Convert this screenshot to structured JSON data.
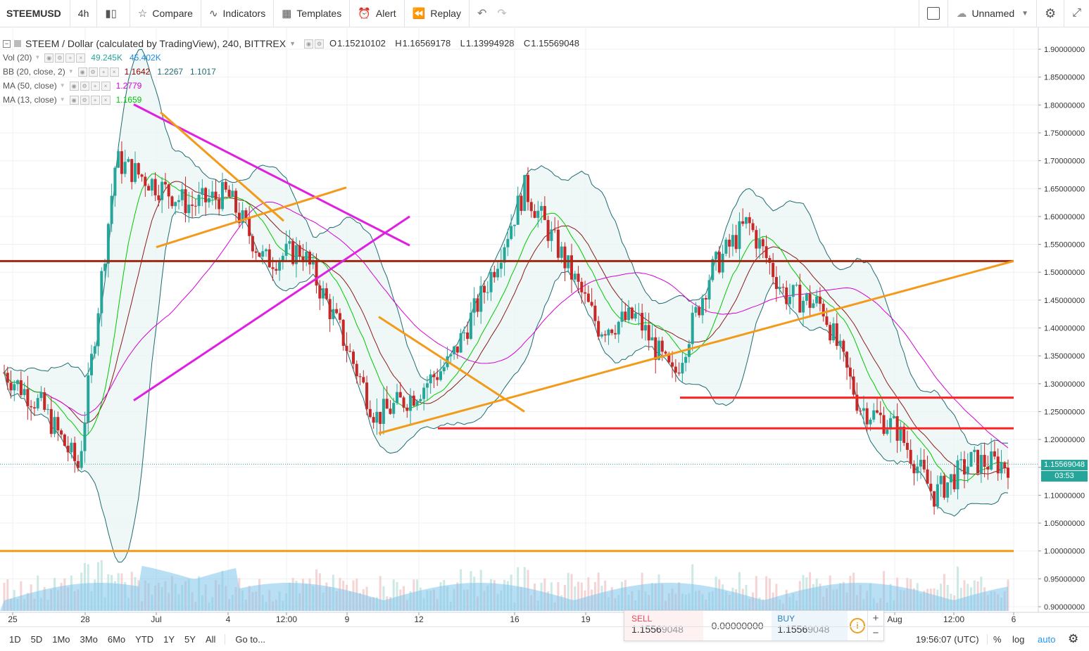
{
  "toolbar": {
    "symbol": "STEEMUSD",
    "interval": "4h",
    "compare": "Compare",
    "indicators": "Indicators",
    "templates": "Templates",
    "alert": "Alert",
    "replay": "Replay",
    "layout_name": "Unnamed"
  },
  "legend": {
    "title": "STEEM / Dollar (calculated by TradingView), 240, BITTREX",
    "open": "1.15210102",
    "high": "1.16569178",
    "low": "1.13994928",
    "close": "1.15569048",
    "open_label": "O",
    "high_label": "H",
    "low_label": "L",
    "close_label": "C",
    "indicators": [
      {
        "name": "Vol (20)",
        "values": [
          "49.245K",
          "45.402K"
        ],
        "colors": [
          "#26a69a",
          "#1e88e5"
        ]
      },
      {
        "name": "BB (20, close, 2)",
        "values": [
          "1.1642",
          "1.2267",
          "1.1017"
        ],
        "colors": [
          "#8b0000",
          "#1e6b72",
          "#1e6b72"
        ]
      },
      {
        "name": "MA (50, close)",
        "values": [
          "1.2779"
        ],
        "colors": [
          "#d500d5"
        ]
      },
      {
        "name": "MA (13, close)",
        "values": [
          "1.1659"
        ],
        "colors": [
          "#00c800"
        ]
      }
    ]
  },
  "price_axis": {
    "labels": [
      "1.90000000",
      "1.85000000",
      "1.80000000",
      "1.75000000",
      "1.70000000",
      "1.65000000",
      "1.60000000",
      "1.55000000",
      "1.50000000",
      "1.45000000",
      "1.40000000",
      "1.35000000",
      "1.30000000",
      "1.25000000",
      "1.20000000",
      "1.15000000",
      "1.10000000",
      "1.05000000",
      "1.00000000",
      "0.95000000",
      "0.90000000"
    ],
    "last_price": "1.15569048",
    "countdown": "03:53"
  },
  "time_axis": {
    "labels": [
      "25",
      "28",
      "Jul",
      "4",
      "12:00",
      "9",
      "12",
      "16",
      "19",
      "Aug",
      "12:00",
      "6"
    ]
  },
  "chart_data": {
    "type": "candlestick",
    "symbol": "STEEMUSD",
    "interval": "240",
    "ylim": [
      0.9,
      1.9
    ],
    "log_scale": false,
    "grid": true,
    "bb_upper_peak_note": "approximate",
    "close_series_approx": [
      {
        "x": "25",
        "y": 1.32
      },
      {
        "x": "28",
        "y": 1.26
      },
      {
        "x": "29",
        "y": 1.15
      },
      {
        "x": "Jul",
        "y": 1.7
      },
      {
        "x": "2",
        "y": 1.66
      },
      {
        "x": "4",
        "y": 1.62
      },
      {
        "x": "5",
        "y": 1.64
      },
      {
        "x": "12:00",
        "y": 1.52
      },
      {
        "x": "9",
        "y": 1.54
      },
      {
        "x": "10",
        "y": 1.4
      },
      {
        "x": "12",
        "y": 1.24
      },
      {
        "x": "14",
        "y": 1.28
      },
      {
        "x": "16",
        "y": 1.34
      },
      {
        "x": "17",
        "y": 1.48
      },
      {
        "x": "18",
        "y": 1.65
      },
      {
        "x": "19",
        "y": 1.53
      },
      {
        "x": "21",
        "y": 1.4
      },
      {
        "x": "23",
        "y": 1.42
      },
      {
        "x": "25",
        "y": 1.31
      },
      {
        "x": "27",
        "y": 1.5
      },
      {
        "x": "28",
        "y": 1.59
      },
      {
        "x": "29",
        "y": 1.46
      },
      {
        "x": "31",
        "y": 1.44
      },
      {
        "x": "Aug",
        "y": 1.26
      },
      {
        "x": "3",
        "y": 1.22
      },
      {
        "x": "12:00",
        "y": 1.1
      },
      {
        "x": "5",
        "y": 1.16
      },
      {
        "x": "6",
        "y": 1.1557
      }
    ],
    "horizontal_lines": [
      {
        "price": 1.52,
        "color": "#9c2a12"
      },
      {
        "price": 1.275,
        "color": "#ff2222"
      },
      {
        "price": 1.22,
        "color": "#ff2222"
      },
      {
        "price": 1.0,
        "color": "#f39a1a"
      }
    ]
  },
  "trade_panel": {
    "sell_label": "SELL",
    "sell_price_main": "1.1556",
    "sell_price_tail": "9048",
    "spread": "0.00000000",
    "buy_label": "BUY",
    "buy_price_main": "1.1556",
    "buy_price_tail": "9048"
  },
  "bottombar": {
    "ranges": [
      "1D",
      "5D",
      "1Mo",
      "3Mo",
      "6Mo",
      "YTD",
      "1Y",
      "5Y",
      "All"
    ],
    "goto": "Go to...",
    "clock": "19:56:07 (UTC)",
    "percent": "%",
    "log": "log",
    "auto": "auto"
  },
  "colors": {
    "up": "#26a69a",
    "down": "#c62828",
    "bb_fill": "#e8f5f3",
    "volume_area": "#7fc4ec"
  }
}
